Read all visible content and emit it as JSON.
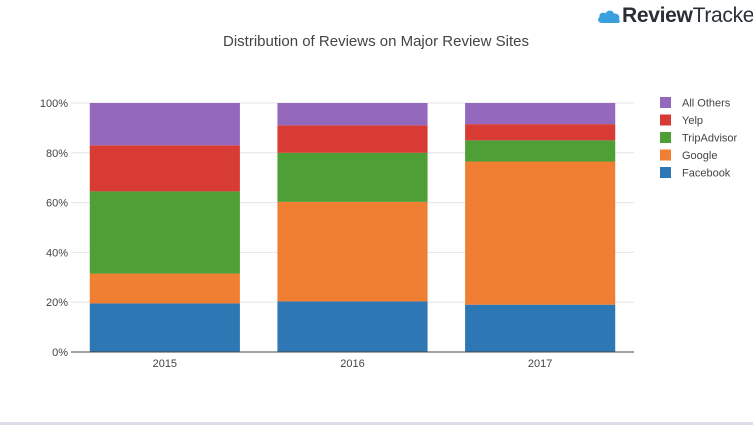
{
  "brand": {
    "part1": "Review",
    "part2": "Trackers",
    "icon": "cloud-logo-icon",
    "icon_color": "#3aa0dc"
  },
  "chart_data": {
    "type": "bar",
    "stacked": true,
    "title": "Distribution of Reviews on Major Review Sites",
    "xlabel": "",
    "ylabel": "",
    "categories": [
      "2015",
      "2016",
      "2017"
    ],
    "ylim": [
      0,
      100
    ],
    "yticks": [
      0,
      20,
      40,
      60,
      80,
      100
    ],
    "ytick_labels": [
      "0%",
      "20%",
      "40%",
      "60%",
      "80%",
      "100%"
    ],
    "grid": true,
    "legend_position": "right",
    "series": [
      {
        "name": "Facebook",
        "color": "#2c77b4",
        "values": [
          19.5,
          20.3,
          19.0
        ]
      },
      {
        "name": "Google",
        "color": "#f07f34",
        "values": [
          12.0,
          40.0,
          57.5
        ]
      },
      {
        "name": "TripAdvisor",
        "color": "#4f9f37",
        "values": [
          33.0,
          19.7,
          8.5
        ]
      },
      {
        "name": "Yelp",
        "color": "#d73b33",
        "values": [
          18.5,
          11.0,
          6.5
        ]
      },
      {
        "name": "All Others",
        "color": "#9468bd",
        "values": [
          17.0,
          9.0,
          8.5
        ]
      }
    ]
  }
}
